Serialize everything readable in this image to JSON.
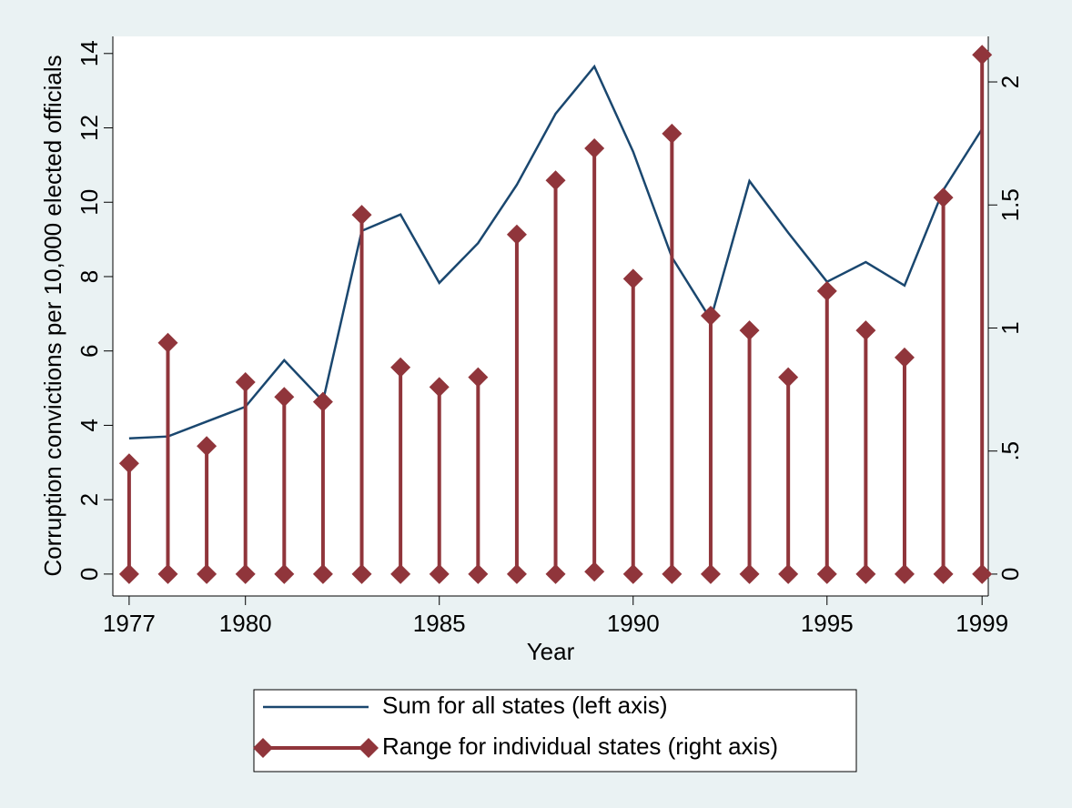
{
  "chart_data": {
    "type": "combo",
    "x_label": "Year",
    "y_label": "Corruption convictions per 10,000 elected officials",
    "x": [
      1977,
      1978,
      1979,
      1980,
      1981,
      1982,
      1983,
      1984,
      1985,
      1986,
      1987,
      1988,
      1989,
      1990,
      1991,
      1992,
      1993,
      1994,
      1995,
      1996,
      1997,
      1998,
      1999
    ],
    "xlim": [
      1976.58,
      1999.16
    ],
    "xticks": [
      1977,
      1980,
      1985,
      1990,
      1995,
      1999
    ],
    "ylim": [
      -0.59,
      14.46
    ],
    "yticks": [
      0,
      2,
      4,
      6,
      8,
      10,
      12,
      14
    ],
    "y2lim": [
      -0.089,
      2.185
    ],
    "y2ticks": [
      0,
      {
        "value": 0.5,
        "label": ".5"
      },
      1,
      1.5,
      2
    ],
    "series": [
      {
        "name": "Sum for all states (left axis)",
        "type": "line",
        "color": "#1a476f",
        "values": [
          3.65,
          3.7,
          4.1,
          4.5,
          5.75,
          4.65,
          9.23,
          9.67,
          7.83,
          8.9,
          10.47,
          12.38,
          13.65,
          11.36,
          8.52,
          6.85,
          10.57,
          9.18,
          7.86,
          8.39,
          7.76,
          10.33,
          11.97
        ]
      },
      {
        "name": "Range for individual states (right axis)",
        "type": "rcap",
        "color": "#90353b",
        "axis": "y2",
        "low": [
          0,
          0,
          0,
          0,
          0,
          0,
          0,
          0,
          0,
          0,
          0,
          0,
          0.01,
          0,
          0,
          0,
          0,
          0,
          0,
          0,
          0,
          0,
          0
        ],
        "high": [
          0.45,
          0.94,
          0.52,
          0.78,
          0.72,
          0.7,
          1.46,
          0.84,
          0.76,
          0.8,
          1.38,
          1.6,
          1.73,
          1.2,
          1.79,
          1.05,
          0.99,
          0.8,
          1.15,
          0.99,
          0.88,
          1.53,
          2.11
        ]
      }
    ]
  }
}
